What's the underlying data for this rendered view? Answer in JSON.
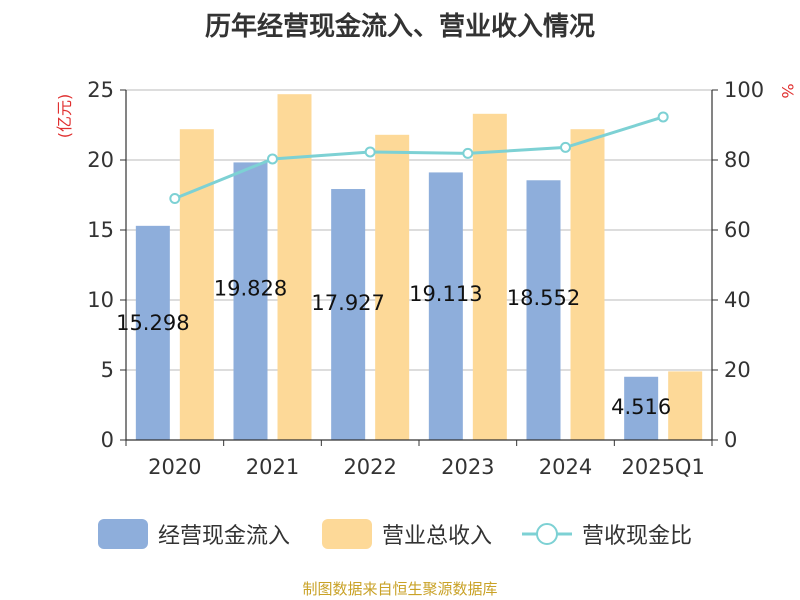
{
  "title": "历年经营现金流入、营业收入情况",
  "footer": "制图数据来自恒生聚源数据库",
  "colors": {
    "bar1": "#8eaedb",
    "bar2": "#fdd998",
    "line": "#7dd1d4",
    "axis": "#333333",
    "grid": "#bbbbbb",
    "unit_red": "#e03030"
  },
  "chart_data": {
    "type": "bar",
    "categories": [
      "2020",
      "2021",
      "2022",
      "2023",
      "2024",
      "2025Q1"
    ],
    "y_left": {
      "unit": "(亿元)",
      "ylim": [
        0,
        25
      ],
      "ticks": [
        0,
        5,
        10,
        15,
        20,
        25
      ]
    },
    "y_right": {
      "unit": "%",
      "ylim": [
        0,
        100
      ],
      "ticks": [
        0,
        20,
        40,
        60,
        80,
        100
      ]
    },
    "series": [
      {
        "name": "经营现金流入",
        "type": "bar",
        "axis": "left",
        "values": [
          15.298,
          19.828,
          17.927,
          19.113,
          18.552,
          4.516
        ],
        "labels": [
          "15.298",
          "19.828",
          "17.927",
          "19.113",
          "18.552",
          "4.516"
        ]
      },
      {
        "name": "营业总收入",
        "type": "bar",
        "axis": "left",
        "values": [
          22.2,
          24.7,
          21.8,
          23.3,
          22.2,
          4.9
        ]
      },
      {
        "name": "营收现金比",
        "type": "line",
        "axis": "right",
        "values": [
          69,
          80.3,
          82.3,
          81.9,
          83.6,
          92.3
        ]
      }
    ],
    "grid": true,
    "legend_position": "bottom"
  }
}
